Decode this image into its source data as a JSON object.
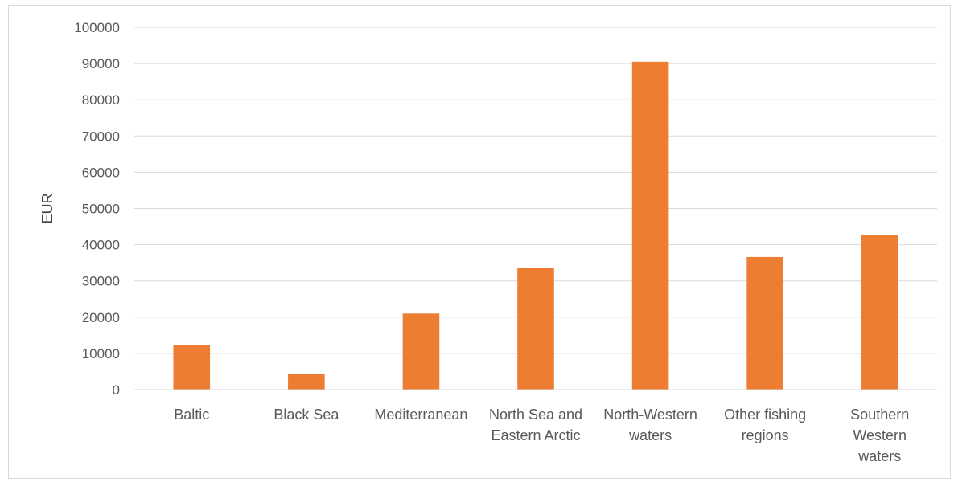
{
  "chart_data": {
    "type": "bar",
    "title": "",
    "xlabel": "",
    "ylabel": "EUR",
    "ylim": [
      0,
      100000
    ],
    "yticks": [
      0,
      10000,
      20000,
      30000,
      40000,
      50000,
      60000,
      70000,
      80000,
      90000,
      100000
    ],
    "grid": true,
    "legend": "none",
    "bar_color": "#ED7D31",
    "categories": [
      [
        "Baltic"
      ],
      [
        "Black Sea"
      ],
      [
        "Mediterranean"
      ],
      [
        "North Sea and",
        "Eastern Arctic"
      ],
      [
        "North-Western",
        "waters"
      ],
      [
        "Other fishing",
        "regions"
      ],
      [
        "Southern",
        "Western",
        "waters"
      ]
    ],
    "values": [
      12200,
      4300,
      21000,
      33500,
      90500,
      36600,
      42700
    ]
  }
}
